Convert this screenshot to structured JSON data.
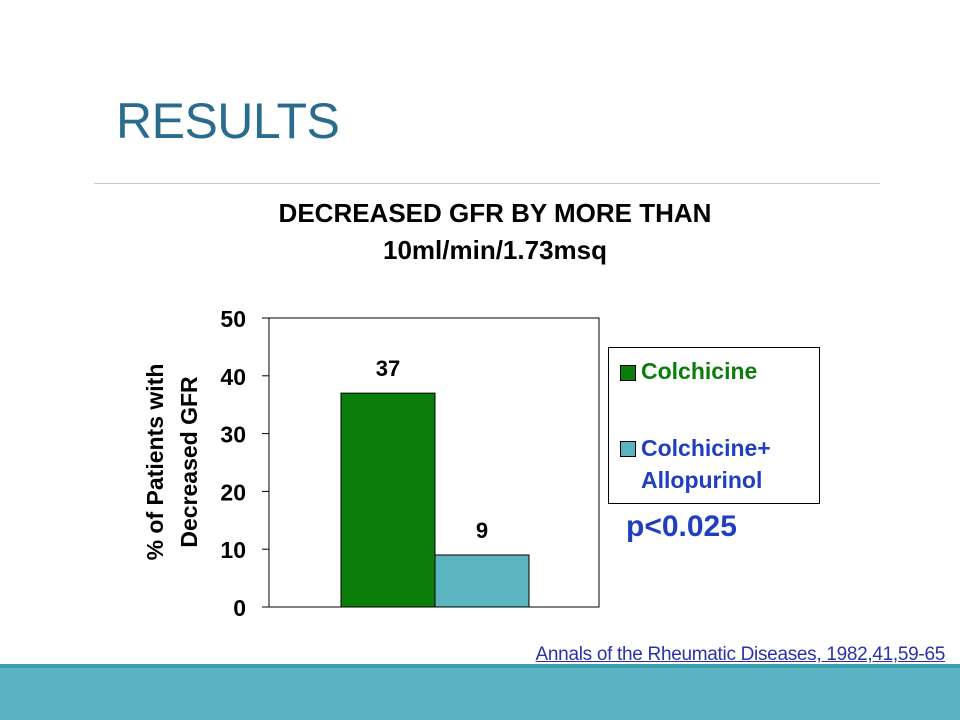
{
  "slide": {
    "title": "RESULTS",
    "p_value": "p<0.025",
    "citation": "Annals of the Rheumatic Diseases,  1982,41,59-65",
    "colors": {
      "title": "#2a6c8e",
      "band": "#5bb3c1",
      "accent_blue": "#1f3fbf"
    }
  },
  "chart_data": {
    "type": "bar",
    "title_lines": [
      "DECREASED GFR BY MORE THAN",
      "10ml/min/1.73msq"
    ],
    "ylabel_lines": [
      "% of Patients with",
      "Decreased GFR"
    ],
    "xlabel": "",
    "ylim": [
      0,
      50
    ],
    "yticks": [
      0,
      10,
      20,
      30,
      40,
      50
    ],
    "grid": false,
    "legend_position": "right",
    "series": [
      {
        "name": "Colchicine",
        "value": 37,
        "color": "#0b7d0b",
        "label_color": "#0b7d0b"
      },
      {
        "name": "Colchicine+ Allopurinol",
        "name_lines": [
          "Colchicine+",
          "Allopurinol"
        ],
        "value": 9,
        "color": "#5ab5c0",
        "label_color": "#1f3fbf"
      }
    ]
  }
}
